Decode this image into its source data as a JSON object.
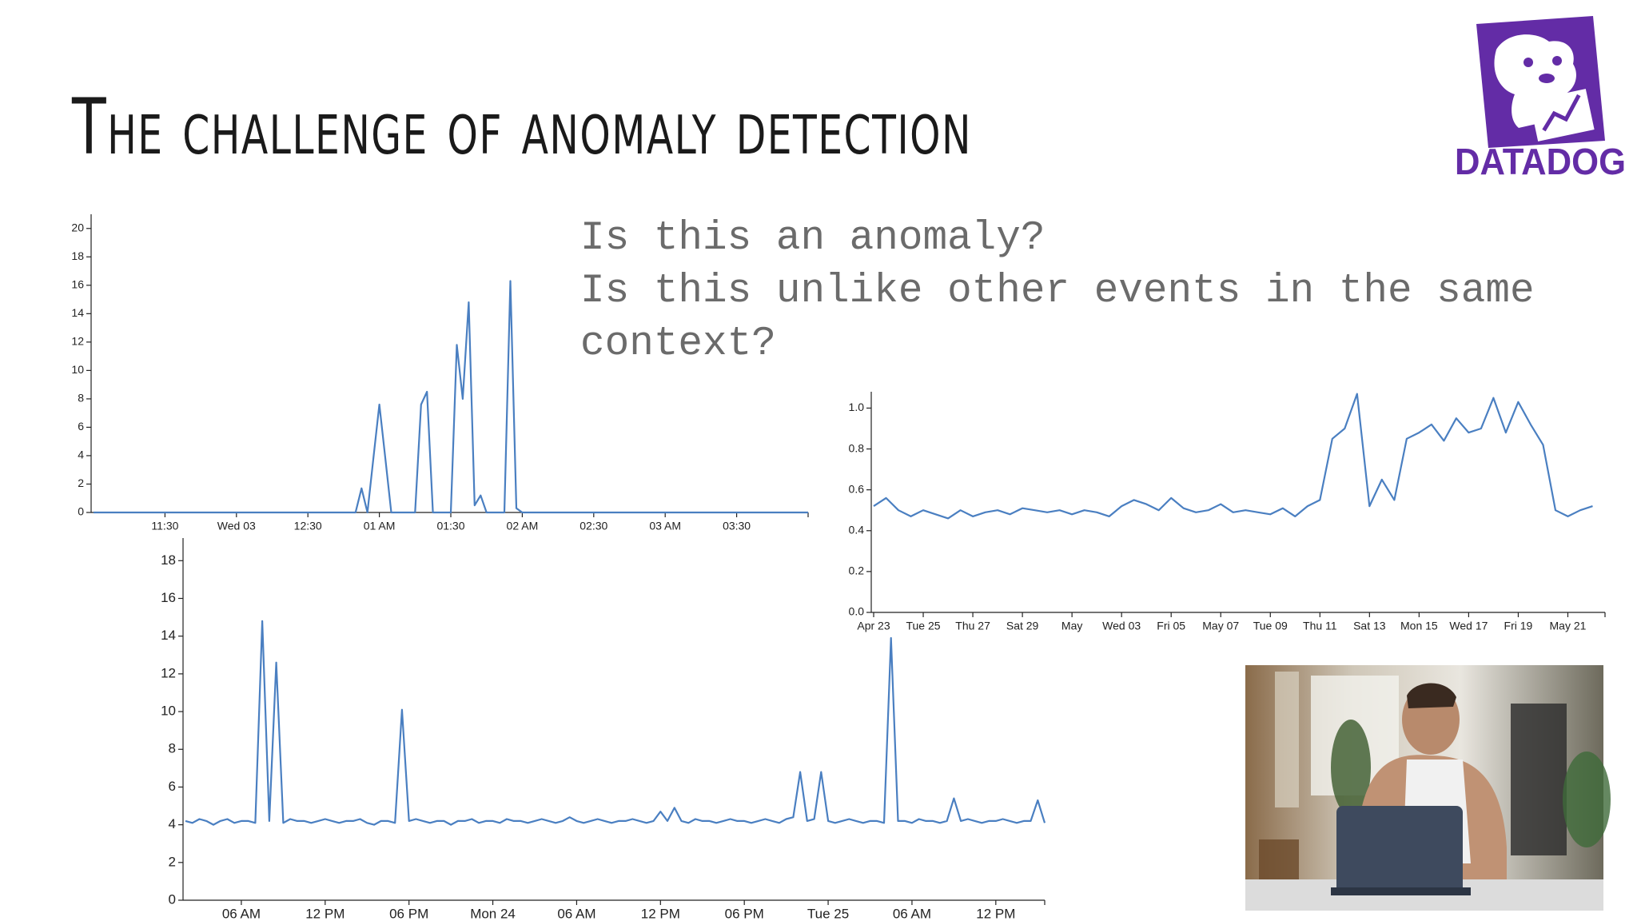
{
  "slide_title": "The challenge of anomaly detection",
  "questions": [
    "Is this an anomaly?",
    "Is this unlike other events in the same context?"
  ],
  "logo": "DATADOG",
  "chart_data": [
    {
      "type": "line",
      "color": "#4a7fc1",
      "values": [
        0,
        0,
        0,
        0,
        0,
        0,
        0,
        0,
        0,
        0,
        0,
        0,
        0,
        0,
        0,
        0,
        0,
        0,
        0,
        0,
        0,
        0,
        0,
        0,
        0,
        0,
        0,
        0,
        0,
        0,
        0,
        0,
        0,
        0,
        0,
        0,
        0,
        0,
        0,
        0,
        0,
        0,
        0,
        0,
        0,
        1.7,
        0,
        3.8,
        7.6,
        3.8,
        0,
        0,
        0,
        0,
        0,
        7.6,
        8.5,
        0,
        0,
        0,
        0,
        11.8,
        8,
        14.8,
        0.5,
        1.2,
        0,
        0,
        0,
        0,
        16.3,
        0.3,
        0,
        0,
        0,
        0,
        0,
        0,
        0,
        0,
        0,
        0,
        0,
        0,
        0,
        0,
        0,
        0,
        0,
        0,
        0,
        0,
        0,
        0,
        0,
        0,
        0,
        0,
        0,
        0,
        0,
        0,
        0,
        0,
        0,
        0,
        0,
        0,
        0,
        0,
        0,
        0,
        0,
        0,
        0,
        0,
        0,
        0,
        0,
        0,
        0
      ],
      "xlim": [
        0,
        120
      ],
      "xticks": [
        {
          "value": 12,
          "label": "11:30"
        },
        {
          "value": 24,
          "label": "Wed 03"
        },
        {
          "value": 36,
          "label": "12:30"
        },
        {
          "value": 48,
          "label": "01 AM"
        },
        {
          "value": 60,
          "label": "01:30"
        },
        {
          "value": 72,
          "label": "02 AM"
        },
        {
          "value": 84,
          "label": "02:30"
        },
        {
          "value": 96,
          "label": "03 AM"
        },
        {
          "value": 108,
          "label": "03:30"
        }
      ],
      "ylim": [
        0,
        21
      ],
      "yticks": [
        0,
        2,
        4,
        6,
        8,
        10,
        12,
        14,
        16,
        18,
        20
      ],
      "grid": false
    },
    {
      "type": "line",
      "color": "#4a7fc1",
      "values": [
        4.2,
        4.1,
        4.3,
        4.2,
        4.0,
        4.2,
        4.3,
        4.1,
        4.2,
        4.2,
        4.1,
        14.8,
        4.2,
        12.6,
        4.1,
        4.3,
        4.2,
        4.2,
        4.1,
        4.2,
        4.3,
        4.2,
        4.1,
        4.2,
        4.2,
        4.3,
        4.1,
        4.0,
        4.2,
        4.2,
        4.1,
        10.1,
        4.2,
        4.3,
        4.2,
        4.1,
        4.2,
        4.2,
        4.0,
        4.2,
        4.2,
        4.3,
        4.1,
        4.2,
        4.2,
        4.1,
        4.3,
        4.2,
        4.2,
        4.1,
        4.2,
        4.3,
        4.2,
        4.1,
        4.2,
        4.4,
        4.2,
        4.1,
        4.2,
        4.3,
        4.2,
        4.1,
        4.2,
        4.2,
        4.3,
        4.2,
        4.1,
        4.2,
        4.7,
        4.2,
        4.9,
        4.2,
        4.1,
        4.3,
        4.2,
        4.2,
        4.1,
        4.2,
        4.3,
        4.2,
        4.2,
        4.1,
        4.2,
        4.3,
        4.2,
        4.1,
        4.3,
        4.4,
        6.8,
        4.2,
        4.3,
        6.8,
        4.2,
        4.1,
        4.2,
        4.3,
        4.2,
        4.1,
        4.2,
        4.2,
        4.1,
        13.9,
        4.2,
        4.2,
        4.1,
        4.3,
        4.2,
        4.2,
        4.1,
        4.2,
        5.4,
        4.2,
        4.3,
        4.2,
        4.1,
        4.2,
        4.2,
        4.3,
        4.2,
        4.1,
        4.2,
        4.2,
        5.3,
        4.1
      ],
      "xlim": [
        0,
        123
      ],
      "xticks": [
        {
          "value": 8,
          "label": "06 AM"
        },
        {
          "value": 20,
          "label": "12 PM"
        },
        {
          "value": 32,
          "label": "06 PM"
        },
        {
          "value": 44,
          "label": "Mon 24"
        },
        {
          "value": 56,
          "label": "06 AM"
        },
        {
          "value": 68,
          "label": "12 PM"
        },
        {
          "value": 80,
          "label": "06 PM"
        },
        {
          "value": 92,
          "label": "Tue 25"
        },
        {
          "value": 104,
          "label": "06 AM"
        },
        {
          "value": 116,
          "label": "12 PM"
        }
      ],
      "ylim": [
        0,
        19.2
      ],
      "yticks": [
        0,
        2,
        4,
        6,
        8,
        10,
        12,
        14,
        16,
        18
      ],
      "grid": false
    },
    {
      "type": "line",
      "color": "#4a7fc1",
      "values": [
        0.52,
        0.56,
        0.5,
        0.47,
        0.5,
        0.48,
        0.46,
        0.5,
        0.47,
        0.49,
        0.5,
        0.48,
        0.51,
        0.5,
        0.49,
        0.5,
        0.48,
        0.5,
        0.49,
        0.47,
        0.52,
        0.55,
        0.53,
        0.5,
        0.56,
        0.51,
        0.49,
        0.5,
        0.53,
        0.49,
        0.5,
        0.49,
        0.48,
        0.51,
        0.47,
        0.52,
        0.55,
        0.85,
        0.9,
        1.07,
        0.52,
        0.65,
        0.55,
        0.85,
        0.88,
        0.92,
        0.84,
        0.95,
        0.88,
        0.9,
        1.05,
        0.88,
        1.03,
        0.92,
        0.82,
        0.5,
        0.47,
        0.5,
        0.52
      ],
      "xlim": [
        0,
        59
      ],
      "xticks": [
        {
          "value": 0,
          "label": "Apr 23"
        },
        {
          "value": 4,
          "label": "Tue 25"
        },
        {
          "value": 8,
          "label": "Thu 27"
        },
        {
          "value": 12,
          "label": "Sat 29"
        },
        {
          "value": 16,
          "label": "May"
        },
        {
          "value": 20,
          "label": "Wed 03"
        },
        {
          "value": 24,
          "label": "Fri 05"
        },
        {
          "value": 28,
          "label": "May 07"
        },
        {
          "value": 32,
          "label": "Tue 09"
        },
        {
          "value": 36,
          "label": "Thu 11"
        },
        {
          "value": 40,
          "label": "Sat 13"
        },
        {
          "value": 44,
          "label": "Mon 15"
        },
        {
          "value": 48,
          "label": "Wed 17"
        },
        {
          "value": 52,
          "label": "Fri 19"
        },
        {
          "value": 56,
          "label": "May 21"
        }
      ],
      "ylim": [
        0,
        1.08
      ],
      "yticks": [
        {
          "value": 0,
          "label": "0.0"
        },
        0.2,
        0.4,
        0.6,
        0.8,
        {
          "value": 1,
          "label": "1.0"
        }
      ],
      "grid": false
    }
  ]
}
